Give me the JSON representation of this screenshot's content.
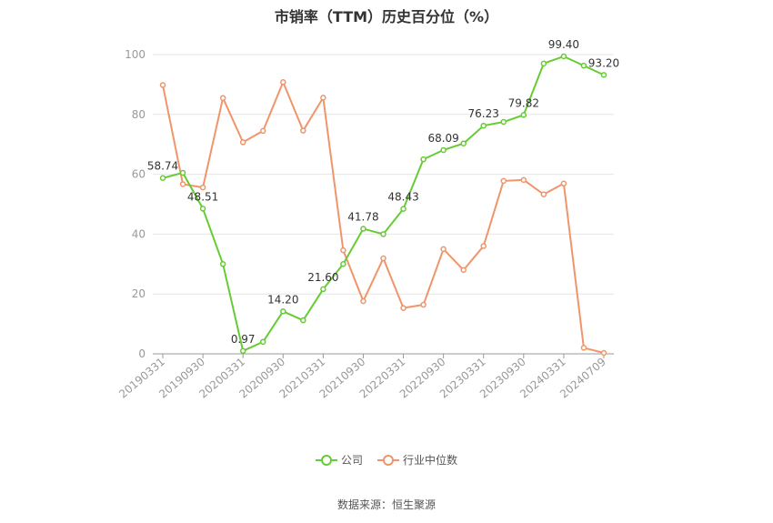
{
  "chart_data": {
    "type": "line",
    "title": "市销率（TTM）历史百分位（%）",
    "categories": [
      "20190331",
      "20190630",
      "20190930",
      "20191231",
      "20200331",
      "20200630",
      "20200930",
      "20201231",
      "20210331",
      "20210630",
      "20210930",
      "20211231",
      "20220331",
      "20220630",
      "20220930",
      "20221231",
      "20230331",
      "20230630",
      "20230930",
      "20231231",
      "20240331",
      "20240630",
      "20240709"
    ],
    "tick_labels": [
      "20190331",
      "20190930",
      "20200331",
      "20200930",
      "20210331",
      "20210930",
      "20220331",
      "20220930",
      "20230331",
      "20230930",
      "20240331",
      "20240709"
    ],
    "ylim": [
      0,
      100
    ],
    "yticks": [
      0,
      20,
      40,
      60,
      80,
      100
    ],
    "grid": true,
    "legend_position": "bottom",
    "series": [
      {
        "name": "公司",
        "color": "#66cc33",
        "values": [
          58.74,
          60.5,
          48.51,
          30.0,
          0.97,
          4.0,
          14.2,
          11.2,
          21.6,
          30.0,
          41.78,
          40.0,
          48.43,
          65.0,
          68.09,
          70.3,
          76.23,
          77.5,
          79.82,
          97.0,
          99.4,
          96.3,
          93.2
        ],
        "labels": {
          "0": "58.74",
          "2": "48.51",
          "4": "0.97",
          "6": "14.20",
          "8": "21.60",
          "10": "41.78",
          "12": "48.43",
          "14": "68.09",
          "16": "76.23",
          "18": "79.82",
          "20": "99.40",
          "22": "93.20"
        }
      },
      {
        "name": "行业中位数",
        "color": "#f0956a",
        "values": [
          89.8,
          56.7,
          55.6,
          85.5,
          70.7,
          74.5,
          90.8,
          74.6,
          85.6,
          34.6,
          17.6,
          31.9,
          15.3,
          16.4,
          35.0,
          28.0,
          36.0,
          57.8,
          58.1,
          53.3,
          56.9,
          2.0,
          0.3
        ]
      }
    ]
  },
  "footer": {
    "source": "数据来源：恒生聚源"
  }
}
